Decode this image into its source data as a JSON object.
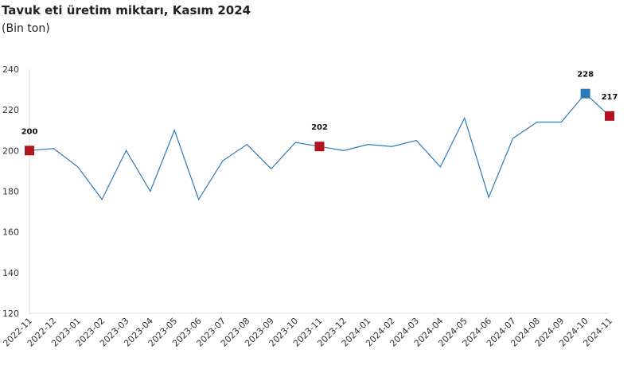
{
  "chart_data": {
    "type": "line",
    "title": "Tavuk eti üretim miktarı, Kasım 2024",
    "subtitle": "(Bin ton)",
    "xlabel": "",
    "ylabel": "",
    "ylim": [
      120,
      240
    ],
    "yticks": [
      120,
      140,
      160,
      180,
      200,
      220,
      240
    ],
    "grid": false,
    "categories": [
      "2022-11",
      "2022-12",
      "2023-01",
      "2023-02",
      "2023-03",
      "2023-04",
      "2023-05",
      "2023-06",
      "2023-07",
      "2023-08",
      "2023-09",
      "2023-10",
      "2023-11",
      "2023-12",
      "2024-01",
      "2024-02",
      "2024-03",
      "2024-04",
      "2024-05",
      "2024-06",
      "2024-07",
      "2024-08",
      "2024-09",
      "2024-10",
      "2024-11"
    ],
    "series": [
      {
        "values": [
          200,
          201,
          192,
          176,
          200,
          180,
          210,
          176,
          195,
          203,
          191,
          204,
          202,
          200,
          203,
          202,
          205,
          192,
          216,
          177,
          206,
          214,
          214,
          228,
          217
        ],
        "color": "#2e7ab8"
      }
    ],
    "highlights": [
      {
        "category": "2022-11",
        "label": "200",
        "color": "#b0141c"
      },
      {
        "category": "2023-11",
        "label": "202",
        "color": "#b0141c"
      },
      {
        "category": "2024-10",
        "label": "228",
        "color": "#2e7ab8"
      },
      {
        "category": "2024-11",
        "label": "217",
        "color": "#b0141c"
      }
    ]
  }
}
